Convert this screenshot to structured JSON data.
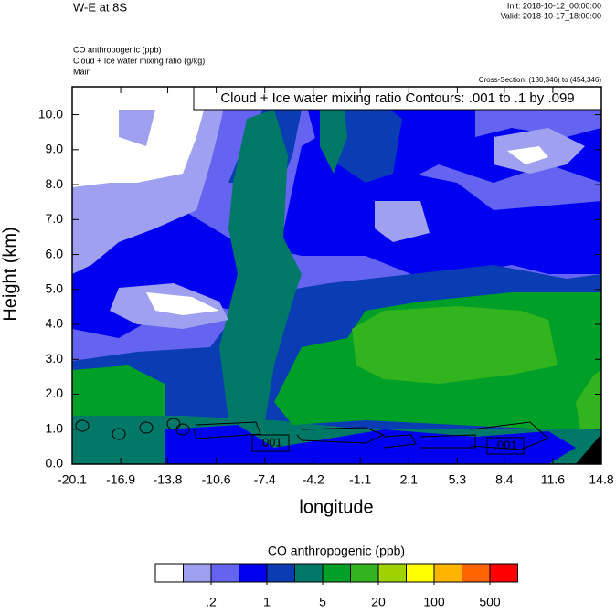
{
  "chart_data": {
    "type": "contour",
    "title": "W-E at 8S",
    "init": "Init: 2018-10-12_00:00:00",
    "valid": "Valid: 2018-10-17_18:00:00",
    "fields": [
      "CO anthropogenic   (ppb)",
      "Cloud + Ice water mixing ratio   (g/kg)",
      "Main"
    ],
    "cross_section": "Cross-Section: (130,346) to (454,346)",
    "contour_info": "Cloud + Ice water mixing ratio Contours: .001 to .1 by .099",
    "contour_labels": [
      ".001",
      ".001"
    ],
    "xlabel": "longitude",
    "ylabel": "Height (km)",
    "xlim": [
      -20.1,
      14.8
    ],
    "xticks": [
      -20.1,
      -16.9,
      -13.8,
      -10.6,
      -7.4,
      -4.2,
      -1.1,
      2.1,
      5.3,
      8.4,
      11.6,
      14.8
    ],
    "ylim": [
      0,
      10.8
    ],
    "yticks": [
      {
        "value": 0,
        "label": "0.0"
      },
      {
        "value": 1,
        "label": "1.0"
      },
      {
        "value": 2,
        "label": "2.0"
      },
      {
        "value": 3,
        "label": "3.0"
      },
      {
        "value": 4,
        "label": "4.0"
      },
      {
        "value": 5,
        "label": "5.0"
      },
      {
        "value": 6,
        "label": "6.0"
      },
      {
        "value": 7,
        "label": "7.0"
      },
      {
        "value": 8,
        "label": "8.0"
      },
      {
        "value": 9,
        "label": "9.0"
      },
      {
        "value": 10,
        "label": "10.0"
      }
    ],
    "colorbar_title": "CO anthropogenic  (ppb)",
    "colorbar_colors": [
      "#ffffff",
      "#a0a0f0",
      "#6464f0",
      "#0000f0",
      "#0a3cb4",
      "#007868",
      "#00a028",
      "#32b41e",
      "#a0d200",
      "#ffff00",
      "#ffb400",
      "#ff6400",
      "#ff0000"
    ],
    "colorbar_ticks": [
      {
        "value": 0.2,
        "label": ".2"
      },
      1,
      5,
      20,
      100,
      500
    ]
  }
}
